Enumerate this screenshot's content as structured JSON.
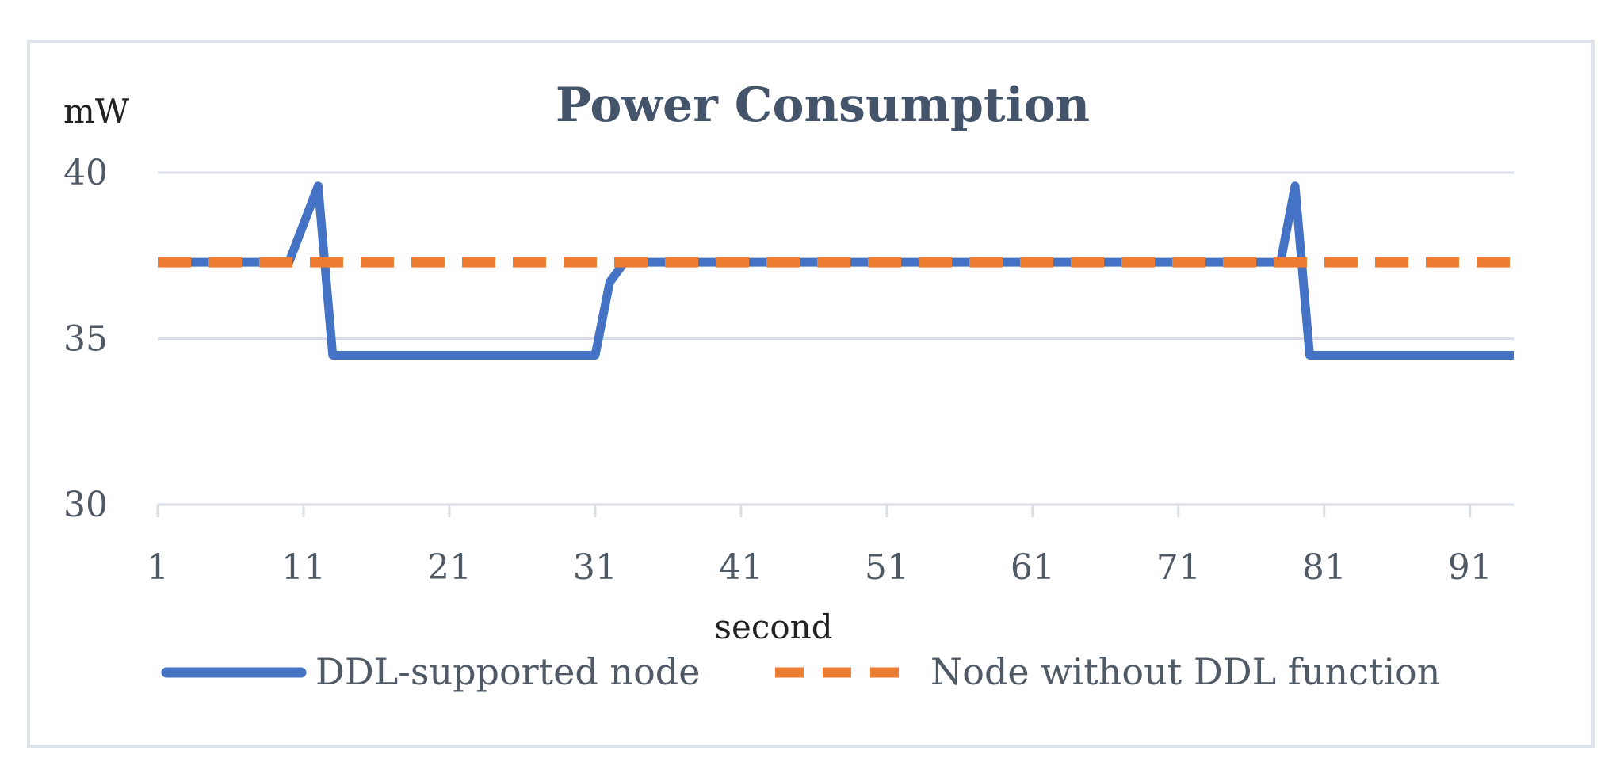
{
  "chart_data": {
    "type": "line",
    "title": "Power Consumption",
    "ylabel": "mW",
    "xlabel": "second",
    "ylim": [
      30,
      40
    ],
    "yticks": [
      30,
      35,
      40
    ],
    "xlim": [
      1,
      94
    ],
    "xticks": [
      1,
      11,
      21,
      31,
      41,
      51,
      61,
      71,
      81,
      91
    ],
    "grid": true,
    "legend_position": "bottom",
    "series": [
      {
        "name": "DDL-supported node",
        "color": "#4472c4",
        "style": "solid",
        "x": [
          1,
          10,
          12,
          13,
          31,
          32,
          33,
          78,
          79,
          80,
          94
        ],
        "values": [
          37.3,
          37.3,
          39.6,
          34.5,
          34.5,
          36.7,
          37.3,
          37.3,
          39.6,
          34.5,
          34.5
        ]
      },
      {
        "name": "Node without DDL function",
        "color": "#ed7d31",
        "style": "dashed",
        "x": [
          1,
          94
        ],
        "values": [
          37.3,
          37.3
        ]
      }
    ]
  }
}
